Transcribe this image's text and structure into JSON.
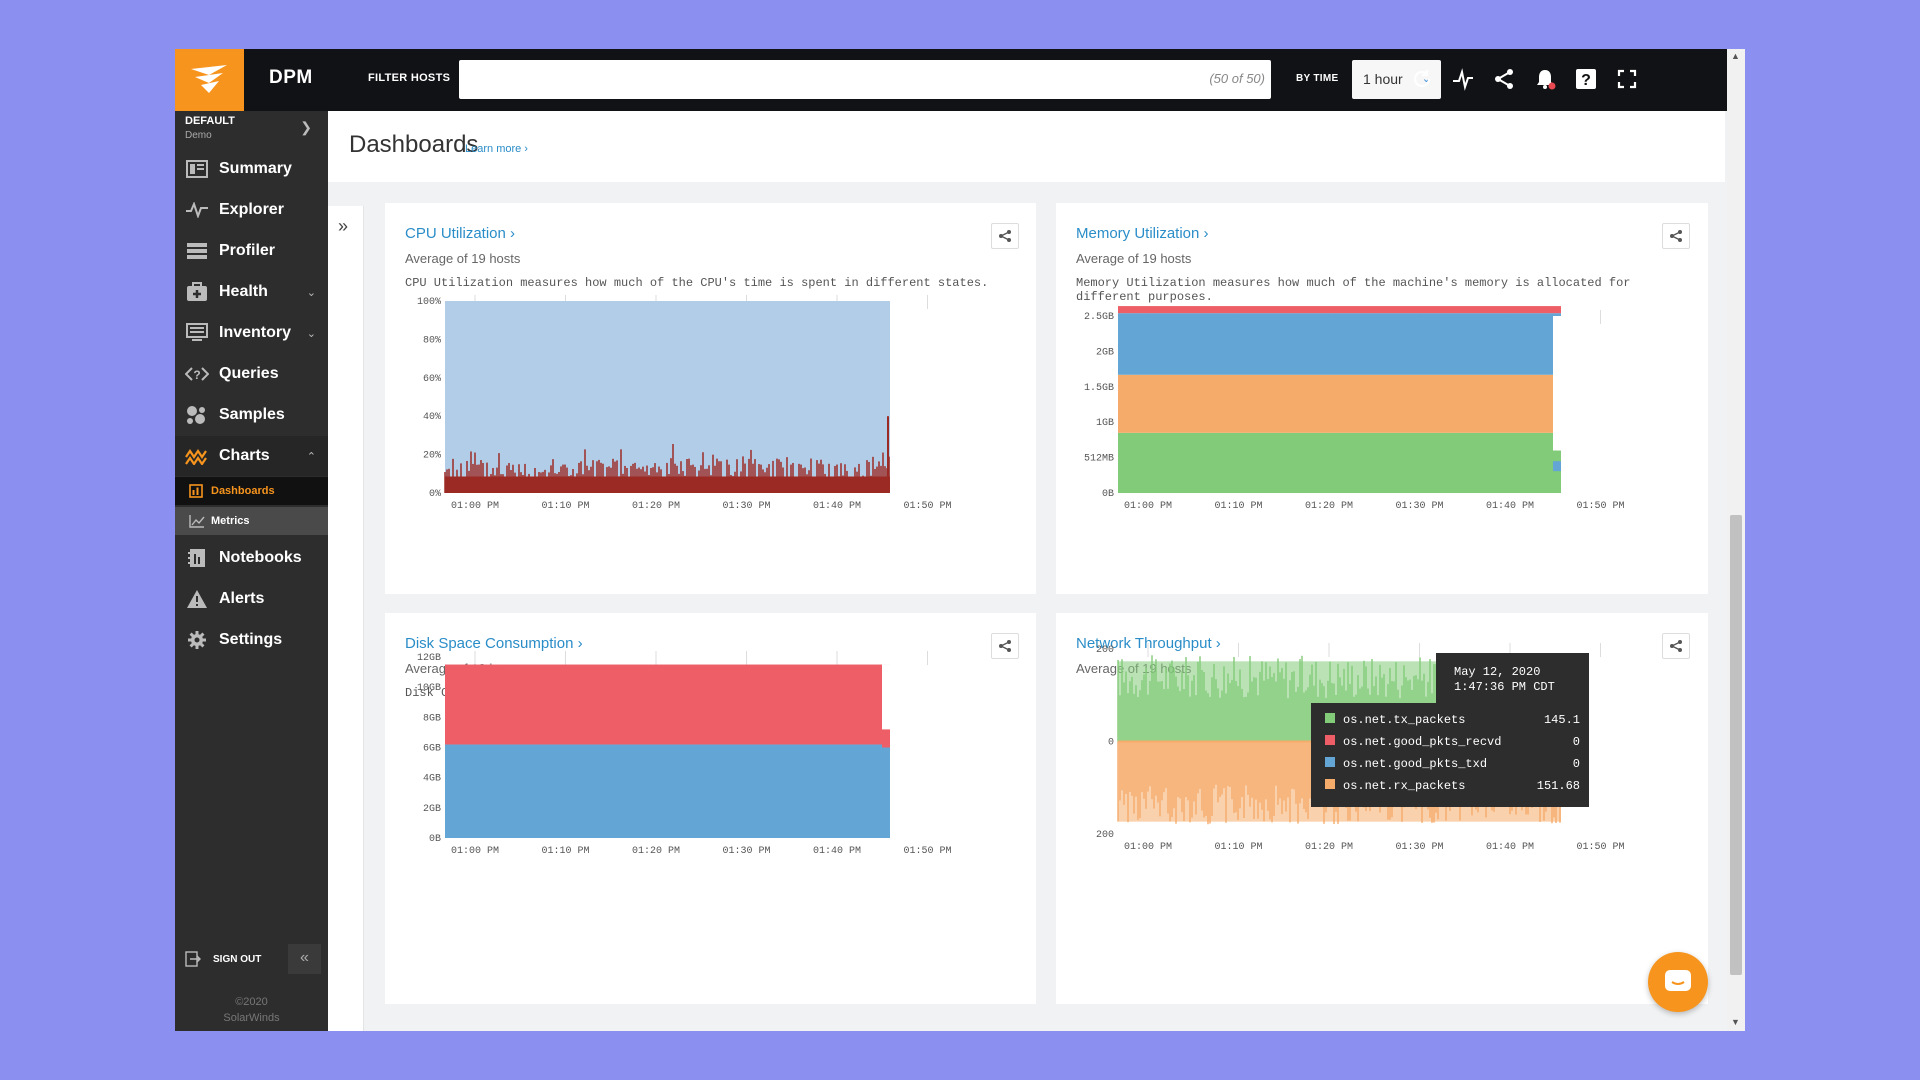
{
  "app": {
    "title": "DPM"
  },
  "topbar": {
    "filter_label": "FILTER HOSTS",
    "filter_value": "",
    "filter_count": "(50 of 50)",
    "by_time_label": "BY TIME",
    "time_value": "1 hour",
    "icons": [
      "refresh-icon",
      "activity-icon",
      "share-icon",
      "bell-icon",
      "help-icon",
      "fullscreen-icon"
    ]
  },
  "workspace": {
    "name": "DEFAULT",
    "sub": "Demo"
  },
  "sidebar": {
    "items": [
      {
        "label": "Summary",
        "icon": "summary-icon"
      },
      {
        "label": "Explorer",
        "icon": "explorer-icon"
      },
      {
        "label": "Profiler",
        "icon": "profiler-icon"
      },
      {
        "label": "Health",
        "icon": "health-icon"
      },
      {
        "label": "Inventory",
        "icon": "inventory-icon"
      },
      {
        "label": "Queries",
        "icon": "queries-icon"
      },
      {
        "label": "Samples",
        "icon": "samples-icon"
      },
      {
        "label": "Charts",
        "icon": "charts-icon"
      },
      {
        "label": "Notebooks",
        "icon": "notebooks-icon"
      },
      {
        "label": "Alerts",
        "icon": "alerts-icon"
      },
      {
        "label": "Settings",
        "icon": "settings-icon"
      }
    ],
    "sub_items": [
      {
        "label": "Dashboards",
        "active": true
      },
      {
        "label": "Metrics",
        "active": false
      }
    ],
    "sign_out": "SIGN OUT",
    "copyright_line1": "©2020",
    "copyright_line2": "SolarWinds"
  },
  "header": {
    "title": "Dashboards",
    "learn_more": "Learn more ›"
  },
  "colors": {
    "accent": "#f7941d",
    "link": "#2a8dc8",
    "red": "#ee5e66",
    "blue": "#63a6d6",
    "orange": "#f5ab6a",
    "green": "#82cb78",
    "light_blue": "#b1cde7",
    "dark_red": "#9c2a24"
  },
  "x_ticks": [
    "01:00 PM",
    "01:10 PM",
    "01:20 PM",
    "01:30 PM",
    "01:40 PM",
    "01:50 PM"
  ],
  "cards": [
    {
      "title": "CPU Utilization ›",
      "sub": "Average of 19 hosts",
      "desc": "CPU Utilization measures how much of the CPU's time is spent in different states."
    },
    {
      "title": "Memory Utilization ›",
      "sub": "Average of 19 hosts",
      "desc": "Memory Utilization measures how much of the machine's memory is allocated for different purposes."
    },
    {
      "title": "Disk Space Consumption ›",
      "sub": "Average of 19 hosts",
      "desc": "Disk Consumption measures how full the disk is."
    },
    {
      "title": "Network Throughput ›",
      "sub": "Average of 19 hosts",
      "desc": ""
    }
  ],
  "chart_data": [
    {
      "type": "area",
      "title": "CPU Utilization",
      "y_ticks": [
        "100%",
        "80%",
        "60%",
        "40%",
        "20%",
        "0%"
      ],
      "ylim": [
        0,
        100
      ],
      "x": [
        "01:00 PM",
        "01:10 PM",
        "01:20 PM",
        "01:30 PM",
        "01:40 PM",
        "01:50 PM"
      ],
      "series": [
        {
          "color": "#9c2a24",
          "values": [
            8,
            9,
            8,
            10,
            9,
            8
          ]
        },
        {
          "color": "#b1cde7",
          "values": [
            92,
            91,
            92,
            90,
            91,
            92
          ]
        }
      ]
    },
    {
      "type": "area",
      "title": "Memory Utilization",
      "y_ticks": [
        "2.5GB",
        "2GB",
        "1.5GB",
        "1GB",
        "512MB",
        "0B"
      ],
      "ylim": [
        0,
        2.5
      ],
      "x": [
        "01:00 PM",
        "01:10 PM",
        "01:20 PM",
        "01:30 PM",
        "01:40 PM",
        "01:50 PM"
      ],
      "series": [
        {
          "color": "#82cb78",
          "values": [
            0.85,
            0.85,
            0.85,
            0.85,
            0.85,
            0.85
          ]
        },
        {
          "color": "#f5ab6a",
          "values": [
            0.82,
            0.82,
            0.82,
            0.82,
            0.82,
            0.82
          ]
        },
        {
          "color": "#63a6d6",
          "values": [
            0.87,
            0.87,
            0.87,
            0.87,
            0.87,
            0.87
          ]
        },
        {
          "color": "#ee5e66",
          "values": [
            0.1,
            0.1,
            0.1,
            0.1,
            0.1,
            0.1
          ]
        }
      ]
    },
    {
      "type": "area",
      "title": "Disk Space Consumption",
      "y_ticks": [
        "12GB",
        "10GB",
        "8GB",
        "6GB",
        "4GB",
        "2GB",
        "0B"
      ],
      "ylim": [
        0,
        12
      ],
      "x": [
        "01:00 PM",
        "01:10 PM",
        "01:20 PM",
        "01:30 PM",
        "01:40 PM",
        "01:50 PM"
      ],
      "series": [
        {
          "color": "#63a6d6",
          "values": [
            6.2,
            6.2,
            6.2,
            6.2,
            6.2,
            6.2
          ]
        },
        {
          "color": "#ee5e66",
          "values": [
            5.3,
            5.3,
            5.3,
            5.3,
            5.3,
            5.3
          ]
        }
      ]
    },
    {
      "type": "area",
      "title": "Network Throughput",
      "y_ticks": [
        "200",
        "0",
        "200"
      ],
      "ylim": [
        -300,
        300
      ],
      "x": [
        "01:00 PM",
        "01:10 PM",
        "01:20 PM",
        "01:30 PM",
        "01:40 PM",
        "01:50 PM"
      ],
      "series": [
        {
          "name": "os.net.tx_packets",
          "color": "#82cb78",
          "values": [
            150,
            145,
            148,
            152,
            146,
            145.1
          ]
        },
        {
          "name": "os.net.good_pkts_recvd",
          "color": "#ee5e66",
          "values": [
            0,
            0,
            0,
            0,
            0,
            0
          ]
        },
        {
          "name": "os.net.good_pkts_txd",
          "color": "#63a6d6",
          "values": [
            0,
            0,
            0,
            0,
            0,
            0
          ]
        },
        {
          "name": "os.net.rx_packets",
          "color": "#f5ab6a",
          "values": [
            -150,
            -152,
            -149,
            -151,
            -150,
            -151.68
          ]
        }
      ],
      "tooltip": {
        "date": "May 12, 2020",
        "time": "1:47:36 PM CDT",
        "rows": [
          {
            "name": "os.net.tx_packets",
            "value": "145.1",
            "color": "#82cb78"
          },
          {
            "name": "os.net.good_pkts_recvd",
            "value": "0",
            "color": "#ee5e66"
          },
          {
            "name": "os.net.good_pkts_txd",
            "value": "0",
            "color": "#63a6d6"
          },
          {
            "name": "os.net.rx_packets",
            "value": "151.68",
            "color": "#f5ab6a"
          }
        ]
      }
    }
  ]
}
